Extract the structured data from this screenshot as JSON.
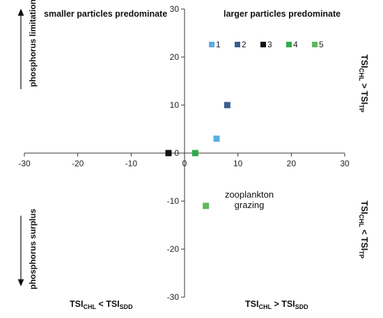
{
  "chart_data": {
    "type": "scatter",
    "xlim": [
      -30,
      30
    ],
    "ylim": [
      -30,
      30
    ],
    "xticks": [
      -30,
      -20,
      -10,
      0,
      10,
      20,
      30
    ],
    "yticks": [
      -30,
      -20,
      -10,
      0,
      10,
      20,
      30
    ],
    "grid": false,
    "legend_position": "top-right",
    "series": [
      {
        "name": "1",
        "color": "#5aaee3",
        "points": [
          [
            6,
            3
          ]
        ]
      },
      {
        "name": "2",
        "color": "#3a5f8e",
        "points": [
          [
            8,
            10
          ]
        ]
      },
      {
        "name": "3",
        "color": "#111111",
        "points": [
          [
            -3,
            0
          ]
        ]
      },
      {
        "name": "4",
        "color": "#2eaa4a",
        "points": [
          [
            2,
            0
          ]
        ]
      },
      {
        "name": "5",
        "color": "#5cb85c",
        "points": [
          [
            4,
            -11
          ]
        ]
      }
    ],
    "quadrant_labels": {
      "top_left": "smaller particles predominate",
      "top_right": "larger particles predominate",
      "annotation_line1": "zooplankton",
      "annotation_line2": "grazing"
    },
    "axis_labels": {
      "left_top": "phosphorus limitation",
      "left_bottom": "phosphorus surplus",
      "bottom_left_main": "TSI",
      "bottom_left_sub1": "CHL",
      "bottom_left_op": " < TSI",
      "bottom_left_sub2": "SDD",
      "bottom_right_main": "TSI",
      "bottom_right_sub1": "CHL",
      "bottom_right_op": " > TSI",
      "bottom_right_sub2": "SDD",
      "right_top_main": "TSI",
      "right_top_sub1": "CHL",
      "right_top_op": " > TSI",
      "right_top_sub2": "TP",
      "right_bottom_main": "TSI",
      "right_bottom_sub1": "CHL",
      "right_bottom_op": " < TSI",
      "right_bottom_sub2": "TP"
    }
  }
}
